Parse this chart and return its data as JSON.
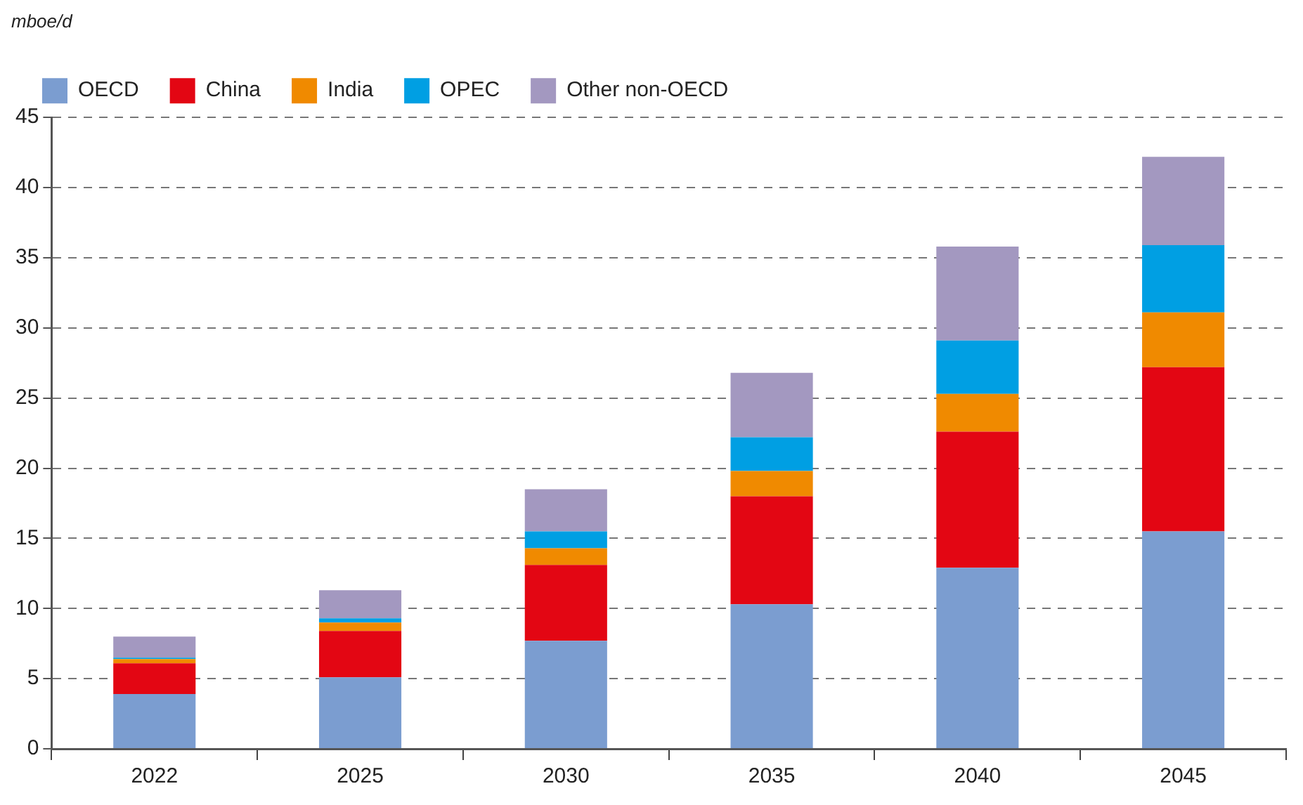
{
  "chart_data": {
    "type": "bar",
    "ylabel": "mboe/d",
    "stacked": true,
    "categories": [
      "2022",
      "2025",
      "2030",
      "2035",
      "2040",
      "2045"
    ],
    "series": [
      {
        "name": "OECD",
        "color": "#7b9dd0",
        "values": [
          3.9,
          5.1,
          7.7,
          10.3,
          12.9,
          15.5
        ]
      },
      {
        "name": "China",
        "color": "#e30613",
        "values": [
          2.2,
          3.3,
          5.4,
          7.7,
          9.7,
          11.7
        ]
      },
      {
        "name": "India",
        "color": "#f08a00",
        "values": [
          0.3,
          0.6,
          1.2,
          1.8,
          2.7,
          3.9
        ]
      },
      {
        "name": "OPEC",
        "color": "#009fe3",
        "values": [
          0.1,
          0.3,
          1.2,
          2.4,
          3.8,
          4.8
        ]
      },
      {
        "name": "Other non-OECD",
        "color": "#a398c0",
        "values": [
          1.5,
          2.0,
          3.0,
          4.6,
          6.7,
          6.3
        ]
      }
    ],
    "ylim": [
      0,
      45
    ],
    "yticks": [
      0,
      5,
      10,
      15,
      20,
      25,
      30,
      35,
      40,
      45
    ],
    "grid": "y",
    "legend": "top left"
  }
}
